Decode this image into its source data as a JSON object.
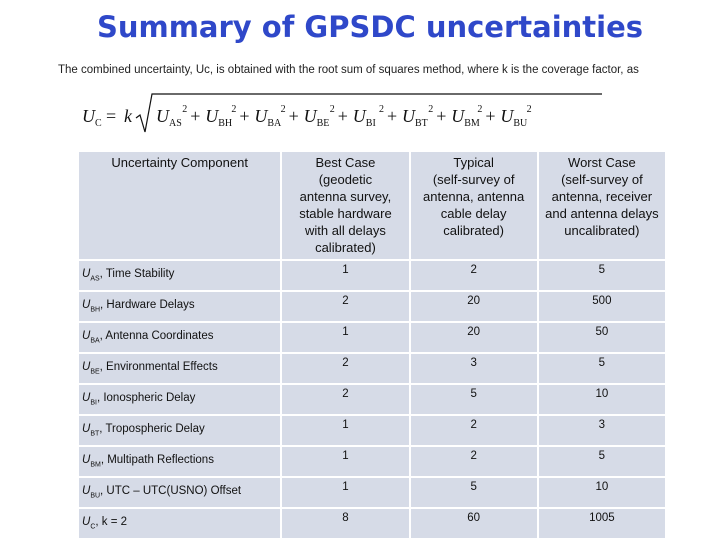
{
  "title": "Summary of GPSDC uncertainties",
  "intro": "The combined uncertainty, Uc, is obtained with the root sum of squares method, where k is the coverage factor, as",
  "formula": {
    "lhs": "U",
    "lhs_sub": "C",
    "equals": "=",
    "k": "k",
    "terms": [
      {
        "sym": "U",
        "sub": "AS",
        "sup": "2"
      },
      {
        "sym": "U",
        "sub": "BH",
        "sup": "2"
      },
      {
        "sym": "U",
        "sub": "BA",
        "sup": "2"
      },
      {
        "sym": "U",
        "sub": "BE",
        "sup": "2"
      },
      {
        "sym": "U",
        "sub": "BI",
        "sup": "2"
      },
      {
        "sym": "U",
        "sub": "BT",
        "sup": "2"
      },
      {
        "sym": "U",
        "sub": "BM",
        "sup": "2"
      },
      {
        "sym": "U",
        "sub": "BU",
        "sup": "2"
      }
    ],
    "plus": "+"
  },
  "table": {
    "headers": [
      "Uncertainty Component",
      "Best Case (geodetic antenna survey, stable hardware with all delays calibrated)",
      "Typical (self-survey of antenna, antenna cable delay calibrated)",
      "Worst Case (self-survey of antenna, receiver and antenna delays uncalibrated)"
    ],
    "header_lines": [
      [
        "Uncertainty Component"
      ],
      [
        "Best Case",
        "(geodetic",
        "antenna survey,",
        "stable hardware",
        "with all delays",
        "calibrated)"
      ],
      [
        "Typical",
        "(self-survey of",
        "antenna, antenna",
        "cable delay",
        "calibrated)"
      ],
      [
        "Worst Case",
        "(self-survey of",
        "antenna, receiver",
        "and antenna delays",
        "uncalibrated)"
      ]
    ],
    "rows": [
      {
        "sym": "U",
        "sub": "AS",
        "text": ", Time Stability",
        "best": "1",
        "typical": "2",
        "worst": "5"
      },
      {
        "sym": "U",
        "sub": "BH",
        "text": ", Hardware Delays",
        "best": "2",
        "typical": "20",
        "worst": "500"
      },
      {
        "sym": "U",
        "sub": "BA",
        "text": ", Antenna Coordinates",
        "best": "1",
        "typical": "20",
        "worst": "50"
      },
      {
        "sym": "U",
        "sub": "BE",
        "text": ", Environmental Effects",
        "best": "2",
        "typical": "3",
        "worst": "5"
      },
      {
        "sym": "U",
        "sub": "BI",
        "text": ", Ionospheric Delay",
        "best": "2",
        "typical": "5",
        "worst": "10"
      },
      {
        "sym": "U",
        "sub": "BT",
        "text": ", Tropospheric Delay",
        "best": "1",
        "typical": "2",
        "worst": "3"
      },
      {
        "sym": "U",
        "sub": "BM",
        "text": ", Multipath Reflections",
        "best": "1",
        "typical": "2",
        "worst": "5"
      },
      {
        "sym": "U",
        "sub": "BU",
        "text": ", UTC – UTC(USNO) Offset",
        "best": "1",
        "typical": "5",
        "worst": "10"
      },
      {
        "sym": "U",
        "sub": "C",
        "text": ", k = 2",
        "best": "8",
        "typical": "60",
        "worst": "1005"
      }
    ]
  },
  "colors": {
    "title": "#2f48c9",
    "cell_background": "#d6dbe7"
  }
}
